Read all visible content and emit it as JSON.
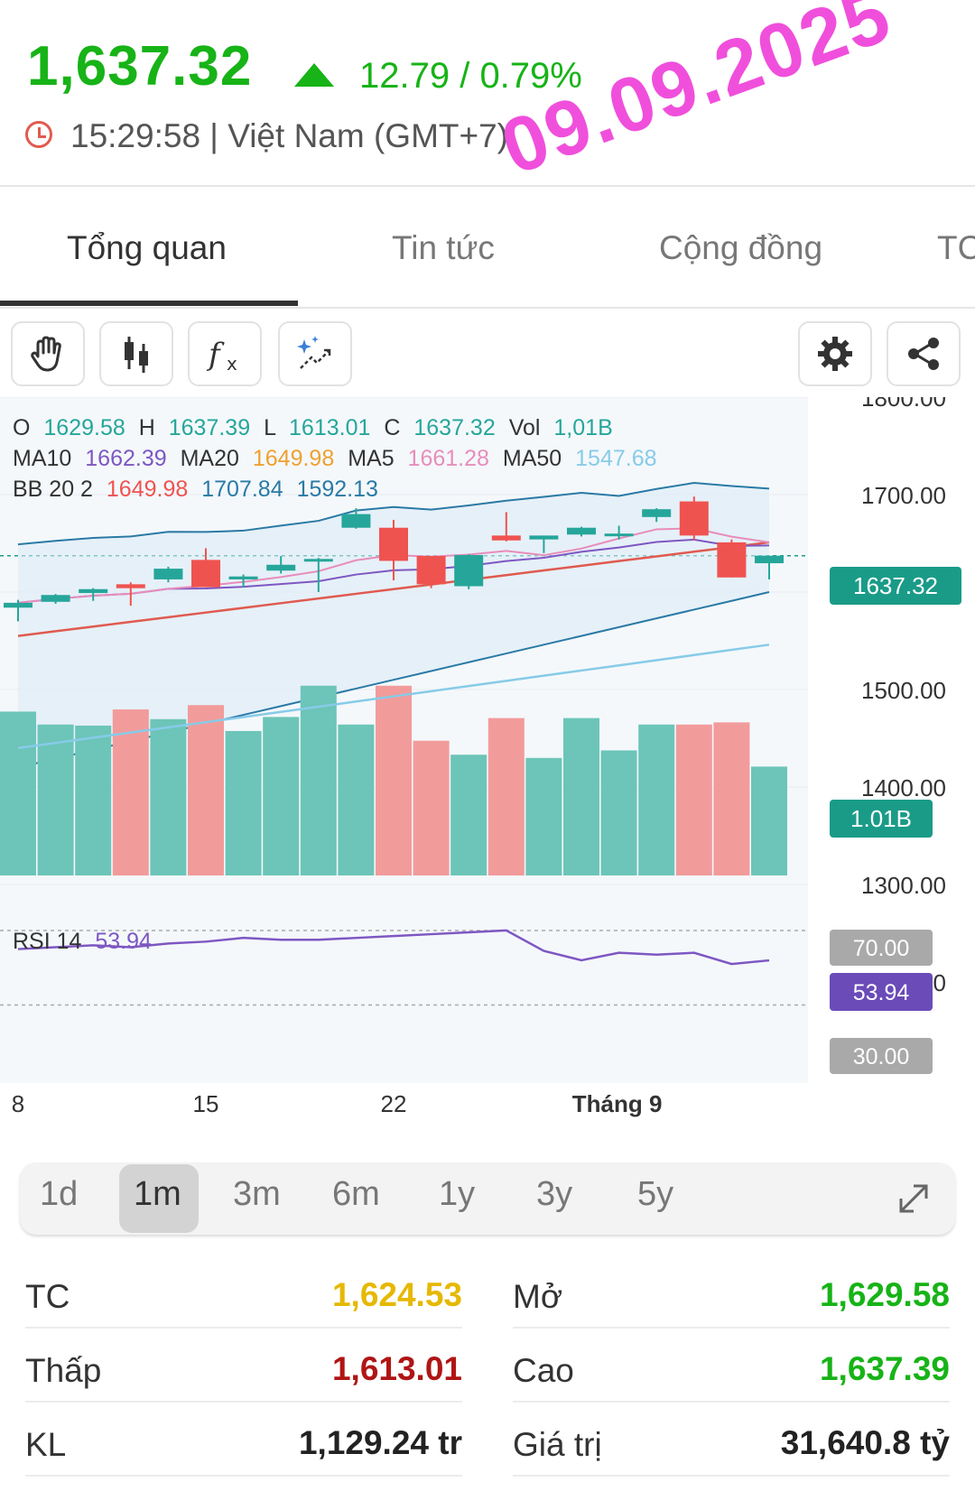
{
  "header": {
    "price": "1,637.32",
    "change": "12.79 / 0.79%",
    "timestamp": "15:29:58 | Việt Nam (GMT+7)",
    "date_stamp": "09.09.2025",
    "up_color": "#17b317"
  },
  "tabs": [
    {
      "label": "Tổng quan",
      "active": true
    },
    {
      "label": "Tin tức",
      "active": false
    },
    {
      "label": "Cộng đồng",
      "active": false
    },
    {
      "label": "TC",
      "active": false
    }
  ],
  "toolbar": {
    "tools": [
      "hand-icon",
      "candlestick-icon",
      "function-icon",
      "magic-wand-icon"
    ],
    "actions": [
      "gear-icon",
      "share-icon"
    ]
  },
  "chart": {
    "ohlc": {
      "o_label": "O",
      "o": "1629.58",
      "h_label": "H",
      "h": "1637.39",
      "l_label": "L",
      "l": "1613.01",
      "c_label": "C",
      "c": "1637.32",
      "vol_label": "Vol",
      "vol": "1,01B"
    },
    "ma": {
      "ma10_label": "MA10",
      "ma10": "1662.39",
      "ma20_label": "MA20",
      "ma20": "1649.98",
      "ma5_label": "MA5",
      "ma5": "1661.28",
      "ma50_label": "MA50",
      "ma50": "1547.68"
    },
    "bb": {
      "label": "BB 20 2",
      "mid": "1649.98",
      "upper": "1707.84",
      "lower": "1592.13"
    },
    "rsi": {
      "label": "RSI 14",
      "value": "53.94",
      "upper": "70.00",
      "lower": "30.00"
    },
    "price_tag": "1637.32",
    "vol_tag": "1.01B",
    "y_ticks": [
      "1800.00",
      "1700.00",
      "1600.00",
      "1500.00",
      "1400.00",
      "1300.00",
      "1200.00"
    ],
    "x_labels": [
      "8",
      "15",
      "22",
      "Tháng 9"
    ],
    "colors": {
      "up": "#26a69a",
      "down": "#ef5350",
      "ma5": "#e88dbb",
      "ma10": "#7e57c2",
      "ma20": "#e05a4f",
      "ma50": "#87cbe8",
      "bb": "#2a7aa5",
      "rsi": "#7e57c2"
    }
  },
  "chart_data": {
    "type": "candlestick",
    "x": [
      "08-08",
      "08-11",
      "08-12",
      "08-13",
      "08-14",
      "08-15",
      "08-18",
      "08-19",
      "08-20",
      "08-21",
      "08-22",
      "08-25",
      "08-26",
      "08-27",
      "08-28",
      "08-29",
      "09-03",
      "09-04",
      "09-05",
      "09-08",
      "09-09"
    ],
    "ohlc": [
      [
        1584,
        1589,
        1570,
        1592
      ],
      [
        1590,
        1597,
        1588,
        1598
      ],
      [
        1599,
        1603,
        1591,
        1604
      ],
      [
        1608,
        1604,
        1586,
        1610
      ],
      [
        1613,
        1624,
        1610,
        1626
      ],
      [
        1633,
        1605,
        1605,
        1645
      ],
      [
        1613,
        1616,
        1605,
        1618
      ],
      [
        1622,
        1628,
        1619,
        1637
      ],
      [
        1633,
        1634,
        1600,
        1635
      ],
      [
        1666,
        1680,
        1665,
        1686
      ],
      [
        1666,
        1632,
        1612,
        1674
      ],
      [
        1637,
        1608,
        1604,
        1637
      ],
      [
        1606,
        1638,
        1603,
        1639
      ],
      [
        1658,
        1653,
        1652,
        1682
      ],
      [
        1654,
        1658,
        1640,
        1658
      ],
      [
        1659,
        1666,
        1657,
        1667
      ],
      [
        1658,
        1660,
        1654,
        1668
      ],
      [
        1677,
        1685,
        1672,
        1686
      ],
      [
        1693,
        1658,
        1653,
        1698
      ],
      [
        1651,
        1615,
        1615,
        1654
      ],
      [
        1629.58,
        1637.32,
        1613.01,
        1637.39
      ]
    ],
    "ohlc_order": [
      "open",
      "close",
      "low",
      "high"
    ],
    "volume_billions": [
      1.52,
      1.4,
      1.39,
      1.54,
      1.45,
      1.58,
      1.34,
      1.47,
      1.76,
      1.4,
      1.76,
      1.25,
      1.12,
      1.46,
      1.09,
      1.46,
      1.16,
      1.4,
      1.4,
      1.42,
      1.01
    ],
    "ylabel": "",
    "ylim": [
      1150,
      1800
    ],
    "y_ticks": [
      1800,
      1700,
      1600,
      1500,
      1400,
      1300,
      1200
    ],
    "x_tick_labels": [
      "8",
      "15",
      "22",
      "Tháng 9"
    ],
    "rsi_14": [
      60,
      61,
      62,
      61,
      63,
      64,
      66,
      65,
      65,
      66,
      67,
      68,
      69,
      70,
      59,
      54,
      58,
      57,
      58,
      52,
      53.94
    ],
    "rsi_levels": [
      70,
      30
    ],
    "grid": true
  },
  "timeframes": [
    {
      "label": "1d",
      "active": false
    },
    {
      "label": "1m",
      "active": true
    },
    {
      "label": "3m",
      "active": false
    },
    {
      "label": "6m",
      "active": false
    },
    {
      "label": "1y",
      "active": false
    },
    {
      "label": "3y",
      "active": false
    },
    {
      "label": "5y",
      "active": false
    }
  ],
  "stats": {
    "left": [
      {
        "label": "TC",
        "value": "1,624.53",
        "color": "#e6b800"
      },
      {
        "label": "Thấp",
        "value": "1,613.01",
        "color": "#b01515"
      },
      {
        "label": "KL",
        "value": "1,129.24 tr",
        "color": "#222222"
      }
    ],
    "right": [
      {
        "label": "Mở",
        "value": "1,629.58",
        "color": "#17b317"
      },
      {
        "label": "Cao",
        "value": "1,637.39",
        "color": "#17b317"
      },
      {
        "label": "Giá trị",
        "value": "31,640.8 tỷ",
        "color": "#222222"
      }
    ]
  }
}
